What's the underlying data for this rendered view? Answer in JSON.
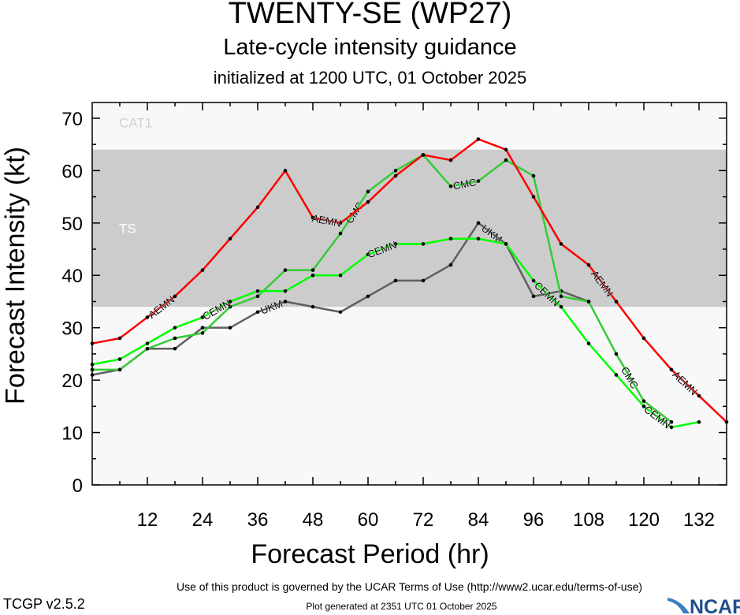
{
  "title": "TWENTY-SE (WP27)",
  "subtitle": "Late-cycle intensity guidance",
  "init_line": "initialized at 1200 UTC, 01 October 2025",
  "footer": {
    "terms": "Use of this product is governed by the UCAR Terms of Use (http://www2.ucar.edu/terms-of-use)",
    "version": "TCGP v2.5.2",
    "generated": "Plot generated at 2351 UTC   01 October 2025",
    "logo_text": "NCAR"
  },
  "chart_data": {
    "type": "line",
    "xlabel": "Forecast Period (hr)",
    "ylabel": "Forecast Intensity (kt)",
    "xlim": [
      0,
      138
    ],
    "ylim": [
      0,
      73
    ],
    "xticks": [
      12,
      24,
      36,
      48,
      60,
      72,
      84,
      96,
      108,
      120,
      132
    ],
    "yticks": [
      0,
      10,
      20,
      30,
      40,
      50,
      60,
      70
    ],
    "grid": false,
    "bands": [
      {
        "label": "TS",
        "from": 34,
        "to": 64,
        "color": "#cccccc"
      },
      {
        "label": "CAT1",
        "from": 64,
        "to": 83,
        "color": "#f8f8f8"
      }
    ],
    "x": [
      0,
      6,
      12,
      18,
      24,
      30,
      36,
      42,
      48,
      54,
      60,
      66,
      72,
      78,
      84,
      90,
      96,
      102,
      108,
      114,
      120,
      126,
      132,
      138
    ],
    "series": [
      {
        "name": "UKM",
        "color": "#606060",
        "values": [
          21,
          22,
          26,
          26,
          30,
          30,
          33,
          35,
          34,
          33,
          36,
          39,
          39,
          42,
          50,
          46,
          36,
          37,
          35,
          null,
          null,
          null,
          null,
          null
        ]
      },
      {
        "name": "CMC",
        "color": "#33cc33",
        "values": [
          22,
          22,
          26,
          28,
          29,
          34,
          36,
          41,
          41,
          48,
          56,
          60,
          63,
          57,
          58,
          62,
          59,
          36,
          35,
          25,
          16,
          12,
          null,
          null
        ]
      },
      {
        "name": "CEMN",
        "color": "#00ff00",
        "values": [
          23,
          24,
          27,
          30,
          32,
          35,
          37,
          37,
          40,
          40,
          44,
          46,
          46,
          47,
          47,
          46,
          39,
          34,
          27,
          21,
          15,
          11,
          12,
          null
        ]
      },
      {
        "name": "AEMN",
        "color": "#ff0000",
        "values": [
          27,
          28,
          32,
          36,
          41,
          47,
          53,
          60,
          51,
          50,
          54,
          59,
          63,
          62,
          66,
          64,
          55,
          46,
          42,
          35,
          28,
          22,
          17,
          12
        ]
      }
    ]
  }
}
